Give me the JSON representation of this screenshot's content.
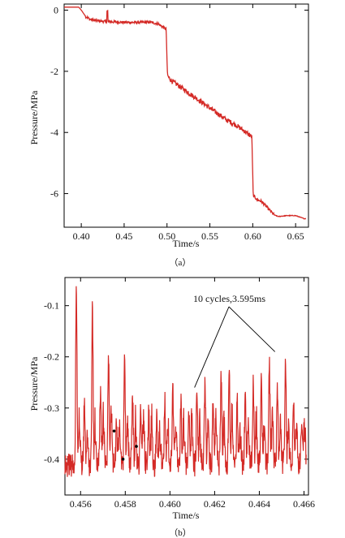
{
  "chart_data": [
    {
      "type": "line",
      "panel_label": "（a）",
      "xlabel": "Time/s",
      "ylabel": "Pressure/MPa",
      "xlim": [
        0.38,
        0.665
      ],
      "ylim": [
        -7.1,
        0.2
      ],
      "x_ticks": [
        0.4,
        0.45,
        0.5,
        0.55,
        0.6,
        0.65
      ],
      "x_tick_labels": [
        "0.40",
        "0.45",
        "0.50",
        "0.55",
        "0.60",
        "0.65"
      ],
      "y_ticks": [
        0,
        -2,
        -4,
        -6
      ],
      "y_tick_labels": [
        "0",
        "-2",
        "-4",
        "-6"
      ],
      "grid": false,
      "line_color": "#d42a26",
      "series": [
        {
          "x": [
            0.38,
            0.39,
            0.395,
            0.397,
            0.4,
            0.405,
            0.41,
            0.42,
            0.43,
            0.44,
            0.45,
            0.46,
            0.47,
            0.48,
            0.49,
            0.495,
            0.499,
            0.5005,
            0.502,
            0.505,
            0.51,
            0.52,
            0.53,
            0.54,
            0.55,
            0.56,
            0.57,
            0.58,
            0.59,
            0.599,
            0.6005,
            0.602,
            0.605,
            0.61,
            0.615,
            0.62,
            0.625,
            0.63,
            0.64,
            0.65,
            0.66
          ],
          "y": [
            0.1,
            0.1,
            0.1,
            0.1,
            0.0,
            -0.2,
            -0.3,
            -0.35,
            -0.38,
            -0.38,
            -0.4,
            -0.4,
            -0.4,
            -0.39,
            -0.45,
            -0.55,
            -0.62,
            -2.1,
            -2.2,
            -2.3,
            -2.4,
            -2.6,
            -2.8,
            -3.0,
            -3.2,
            -3.4,
            -3.6,
            -3.75,
            -3.95,
            -4.15,
            -6.05,
            -6.1,
            -6.2,
            -6.25,
            -6.4,
            -6.55,
            -6.7,
            -6.75,
            -6.72,
            -6.72,
            -6.82
          ]
        }
      ]
    },
    {
      "type": "line",
      "panel_label": "（b）",
      "xlabel": "Time/s",
      "ylabel": "Pressure/MPa",
      "xlim": [
        0.4553,
        0.4662
      ],
      "ylim": [
        -0.47,
        -0.045
      ],
      "x_ticks": [
        0.456,
        0.458,
        0.46,
        0.462,
        0.464,
        0.466
      ],
      "x_tick_labels": [
        "0.456",
        "0.458",
        "0.460",
        "0.462",
        "0.464",
        "0.466"
      ],
      "y_ticks": [
        -0.1,
        -0.2,
        -0.3,
        -0.4
      ],
      "y_tick_labels": [
        "-0.1",
        "-0.2",
        "-0.3",
        "-0.4"
      ],
      "grid": false,
      "line_color": "#d42a26",
      "annotation": {
        "text": "10 cycles,3.595ms",
        "start_x": 0.4611,
        "end_x": 0.4647,
        "start_y": -0.26,
        "end_y": -0.19
      },
      "period_ms": 0.3595,
      "peak_times": [
        0.45581,
        0.45617,
        0.45653,
        0.45689,
        0.45725,
        0.45761,
        0.45797,
        0.45833,
        0.45869,
        0.45905,
        0.45941,
        0.45977,
        0.46013,
        0.46049,
        0.46085,
        0.46121,
        0.46157,
        0.46193,
        0.46229,
        0.46265,
        0.46301,
        0.46337,
        0.46373,
        0.46409,
        0.46445,
        0.46481,
        0.46517,
        0.46553,
        0.46589
      ],
      "peak_values": [
        -0.06,
        -0.3,
        -0.09,
        -0.26,
        -0.2,
        -0.33,
        -0.21,
        -0.28,
        -0.29,
        -0.3,
        -0.31,
        -0.29,
        -0.26,
        -0.28,
        -0.31,
        -0.26,
        -0.25,
        -0.29,
        -0.24,
        -0.22,
        -0.29,
        -0.26,
        -0.25,
        -0.22,
        -0.21,
        -0.26,
        -0.19,
        -0.28,
        -0.33
      ],
      "baseline": -0.41,
      "markers": [
        {
          "x": 0.4575,
          "y": -0.345
        },
        {
          "x": 0.4579,
          "y": -0.4
        },
        {
          "x": 0.4585,
          "y": -0.375
        }
      ]
    }
  ]
}
